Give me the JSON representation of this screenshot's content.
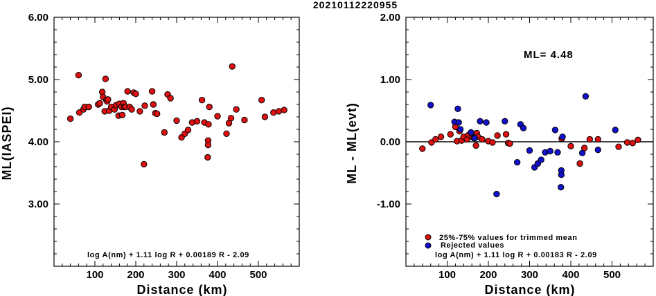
{
  "title": "20210112220955",
  "colors": {
    "accepted": "#dd1111",
    "rejected": "#1111cc",
    "axis": "#000000"
  },
  "chart_data": [
    {
      "type": "scatter",
      "xlabel": "Distance (km)",
      "ylabel": "ML(IASPEI)",
      "xlim": [
        0,
        600
      ],
      "ylim": [
        2.0,
        6.0
      ],
      "xticks": [
        "100",
        "200",
        "300",
        "400",
        "500"
      ],
      "xtick_values": [
        100,
        200,
        300,
        400,
        500
      ],
      "yticks": [
        "3.00",
        "4.00",
        "5.00",
        "6.00"
      ],
      "ytick_values": [
        3.0,
        4.0,
        5.0,
        6.0
      ],
      "annotation": "log A(nm) + 1.11 log R + 0.00189 R - 2.09",
      "series": [
        {
          "color": "#dd1111",
          "x": [
            40,
            60,
            62,
            72,
            75,
            85,
            108,
            112,
            118,
            120,
            124,
            126,
            128,
            130,
            132,
            135,
            140,
            148,
            152,
            158,
            160,
            165,
            167,
            170,
            172,
            175,
            180,
            185,
            190,
            195,
            200,
            210,
            220,
            222,
            240,
            243,
            248,
            252,
            270,
            278,
            285,
            300,
            312,
            320,
            328,
            338,
            350,
            362,
            368,
            376,
            377,
            377,
            378,
            380,
            400,
            422,
            428,
            433,
            436,
            446,
            466,
            508,
            516,
            537,
            550,
            563
          ],
          "y": [
            4.37,
            5.07,
            4.47,
            4.52,
            4.56,
            4.56,
            4.6,
            4.62,
            4.8,
            4.72,
            4.49,
            5.01,
            4.67,
            4.65,
            4.68,
            4.5,
            4.56,
            4.52,
            4.59,
            4.42,
            4.61,
            4.56,
            4.43,
            4.62,
            4.56,
            4.56,
            4.81,
            4.56,
            4.52,
            4.79,
            4.77,
            4.49,
            3.64,
            4.58,
            4.81,
            4.6,
            4.46,
            4.45,
            4.15,
            4.76,
            4.7,
            4.34,
            4.07,
            4.13,
            4.19,
            4.31,
            4.33,
            4.67,
            4.31,
            3.75,
            4.02,
            3.95,
            4.28,
            4.56,
            4.41,
            4.13,
            4.3,
            4.38,
            5.21,
            4.52,
            4.35,
            4.67,
            4.4,
            4.47,
            4.49,
            4.51
          ]
        }
      ]
    },
    {
      "type": "scatter",
      "xlabel": "Distance (km)",
      "ylabel": "ML - ML(evt)",
      "xlim": [
        0,
        600
      ],
      "ylim": [
        -2.0,
        2.0
      ],
      "xticks": [
        "100",
        "200",
        "300",
        "400",
        "500"
      ],
      "xtick_values": [
        100,
        200,
        300,
        400,
        500
      ],
      "yticks": [
        "-1.00",
        "0.00",
        "1.00",
        "2.00"
      ],
      "ytick_values": [
        -1.0,
        0.0,
        1.0,
        2.0
      ],
      "ml_label": "ML= 4.48",
      "annotation": "log A(nm) + 1.11 log R + 0.00183 R - 2.09",
      "reference_line": 0.0,
      "legend": [
        "25%-75% values for trimmed mean",
        "Rejected values"
      ],
      "series": [
        {
          "label": "25%-75% values for trimmed mean",
          "color": "#dd1111",
          "x": [
            40,
            62,
            72,
            85,
            108,
            120,
            124,
            130,
            135,
            140,
            148,
            152,
            160,
            165,
            170,
            172,
            175,
            185,
            200,
            210,
            222,
            243,
            248,
            252,
            378,
            400,
            422,
            433,
            446,
            466,
            516,
            537,
            550,
            563
          ],
          "y": [
            -0.11,
            -0.01,
            0.04,
            0.08,
            0.12,
            0.24,
            0.01,
            0.17,
            0.02,
            0.08,
            0.04,
            0.11,
            0.08,
            0.06,
            -0.06,
            0.14,
            0.08,
            0.04,
            0.01,
            -0.01,
            0.1,
            0.12,
            -0.02,
            -0.03,
            0.05,
            -0.07,
            -0.35,
            -0.1,
            0.04,
            0.04,
            -0.08,
            -0.01,
            -0.02,
            0.03
          ]
        },
        {
          "label": "Rejected values",
          "color": "#1111cc",
          "x": [
            60,
            118,
            126,
            128,
            132,
            158,
            167,
            180,
            195,
            220,
            240,
            270,
            278,
            285,
            300,
            312,
            320,
            328,
            338,
            350,
            362,
            368,
            376,
            377,
            377,
            380,
            428,
            436,
            466,
            508
          ],
          "y": [
            0.59,
            0.32,
            0.53,
            0.31,
            0.2,
            0.15,
            0.06,
            0.33,
            0.31,
            -0.84,
            0.33,
            -0.33,
            0.28,
            0.22,
            -0.14,
            -0.41,
            -0.35,
            -0.29,
            -0.17,
            -0.15,
            0.19,
            -0.17,
            -0.73,
            -0.46,
            -0.53,
            0.08,
            -0.18,
            0.73,
            -0.13,
            0.19
          ]
        }
      ]
    }
  ]
}
